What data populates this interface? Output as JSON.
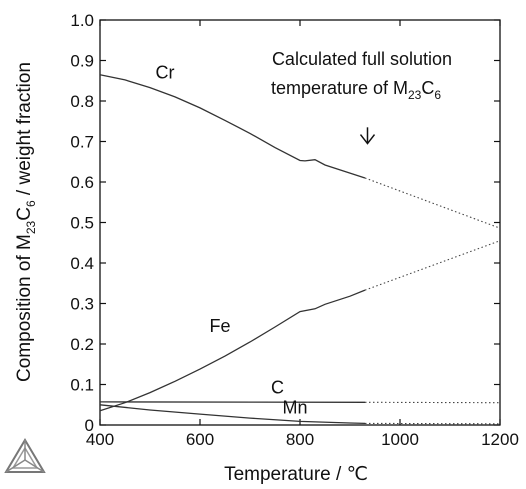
{
  "chart_data": {
    "type": "line",
    "xlabel": "Temperature  /  ℃",
    "ylabel_parts": {
      "pre": "Composition of M",
      "sub1": "23",
      "mid": "C",
      "sub2": "6",
      "post": " / weight fraction"
    },
    "xlim": [
      400,
      1200
    ],
    "ylim": [
      0,
      1.0
    ],
    "xticks": [
      400,
      600,
      800,
      1000,
      1200
    ],
    "yticks": [
      0,
      0.1,
      0.2,
      0.3,
      0.4,
      0.5,
      0.6,
      0.7,
      0.8,
      0.9,
      1.0
    ],
    "grid": false,
    "annotation": {
      "line1": "Calculated full solution",
      "line2_pre": "temperature of M",
      "line2_sub1": "23",
      "line2_mid": "C",
      "line2_sub2": "6",
      "arrow_x": 935,
      "arrow_from": 0.735,
      "arrow_to": 0.695
    },
    "solution_temperature": 930,
    "series": [
      {
        "name": "Cr",
        "label_at": [
          530,
          0.855
        ],
        "x": [
          400,
          450,
          500,
          550,
          600,
          650,
          700,
          750,
          800,
          810,
          830,
          850,
          900,
          930
        ],
        "y": [
          0.865,
          0.852,
          0.833,
          0.81,
          0.783,
          0.752,
          0.72,
          0.685,
          0.653,
          0.652,
          0.655,
          0.642,
          0.622,
          0.61
        ],
        "ext_x": [
          930,
          1200
        ],
        "ext_y": [
          0.61,
          0.486
        ]
      },
      {
        "name": "Fe",
        "label_at": [
          640,
          0.23
        ],
        "x": [
          400,
          450,
          500,
          550,
          600,
          650,
          700,
          750,
          800,
          830,
          850,
          900,
          930
        ],
        "y": [
          0.035,
          0.055,
          0.08,
          0.108,
          0.138,
          0.17,
          0.205,
          0.242,
          0.28,
          0.287,
          0.298,
          0.318,
          0.333
        ],
        "ext_x": [
          930,
          1200
        ],
        "ext_y": [
          0.333,
          0.455
        ]
      },
      {
        "name": "C",
        "label_at": [
          755,
          0.078
        ],
        "x": [
          400,
          930
        ],
        "y": [
          0.057,
          0.056
        ],
        "ext_x": [
          930,
          1200
        ],
        "ext_y": [
          0.056,
          0.055
        ]
      },
      {
        "name": "Mn",
        "label_at": [
          790,
          0.028
        ],
        "x": [
          400,
          500,
          600,
          700,
          800,
          900,
          930
        ],
        "y": [
          0.05,
          0.037,
          0.027,
          0.017,
          0.009,
          0.005,
          0.004
        ],
        "ext_x": [
          930,
          1200
        ],
        "ext_y": [
          0.004,
          0.003
        ]
      }
    ]
  },
  "logo": {
    "name": "thermo-calc-logo"
  }
}
